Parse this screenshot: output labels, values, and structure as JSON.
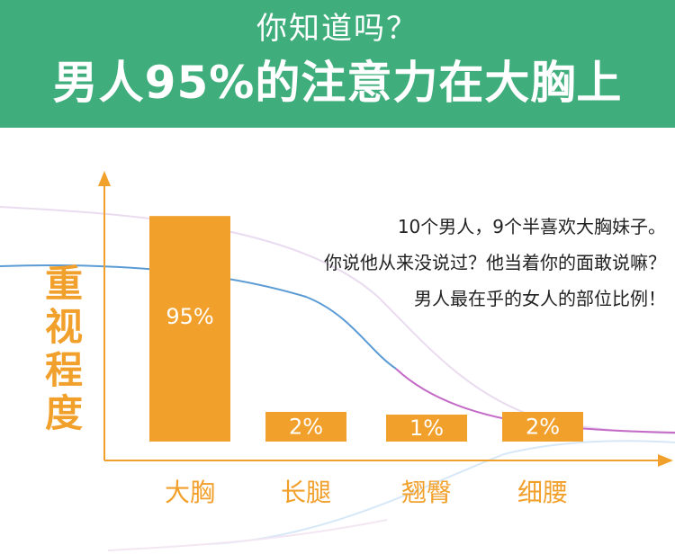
{
  "header": {
    "kicker": "你知道吗？",
    "headline": "男人95%的注意力在大胸上"
  },
  "note_lines": [
    "10个男人，9个半喜欢大胸妹子。",
    "你说他从来没说过？他当着你的面敢说嘛？",
    "男人最在乎的女人的部位比例！"
  ],
  "colors": {
    "banner": "#3fae7c",
    "bar": "#f2a02c",
    "axis": "#f2a02c",
    "curve_blue": "#5b9bd5",
    "curve_purple": "#c36bc7"
  },
  "chart_data": {
    "type": "bar",
    "ylabel": "重视程度",
    "xlabel": "",
    "categories": [
      "大胸",
      "长腿",
      "翘臀",
      "细腰"
    ],
    "values": [
      95,
      2,
      1,
      2
    ],
    "data_labels": [
      "95%",
      "2%",
      "1%",
      "2%"
    ],
    "ylim": [
      0,
      100
    ],
    "grid": false,
    "legend": "none"
  }
}
